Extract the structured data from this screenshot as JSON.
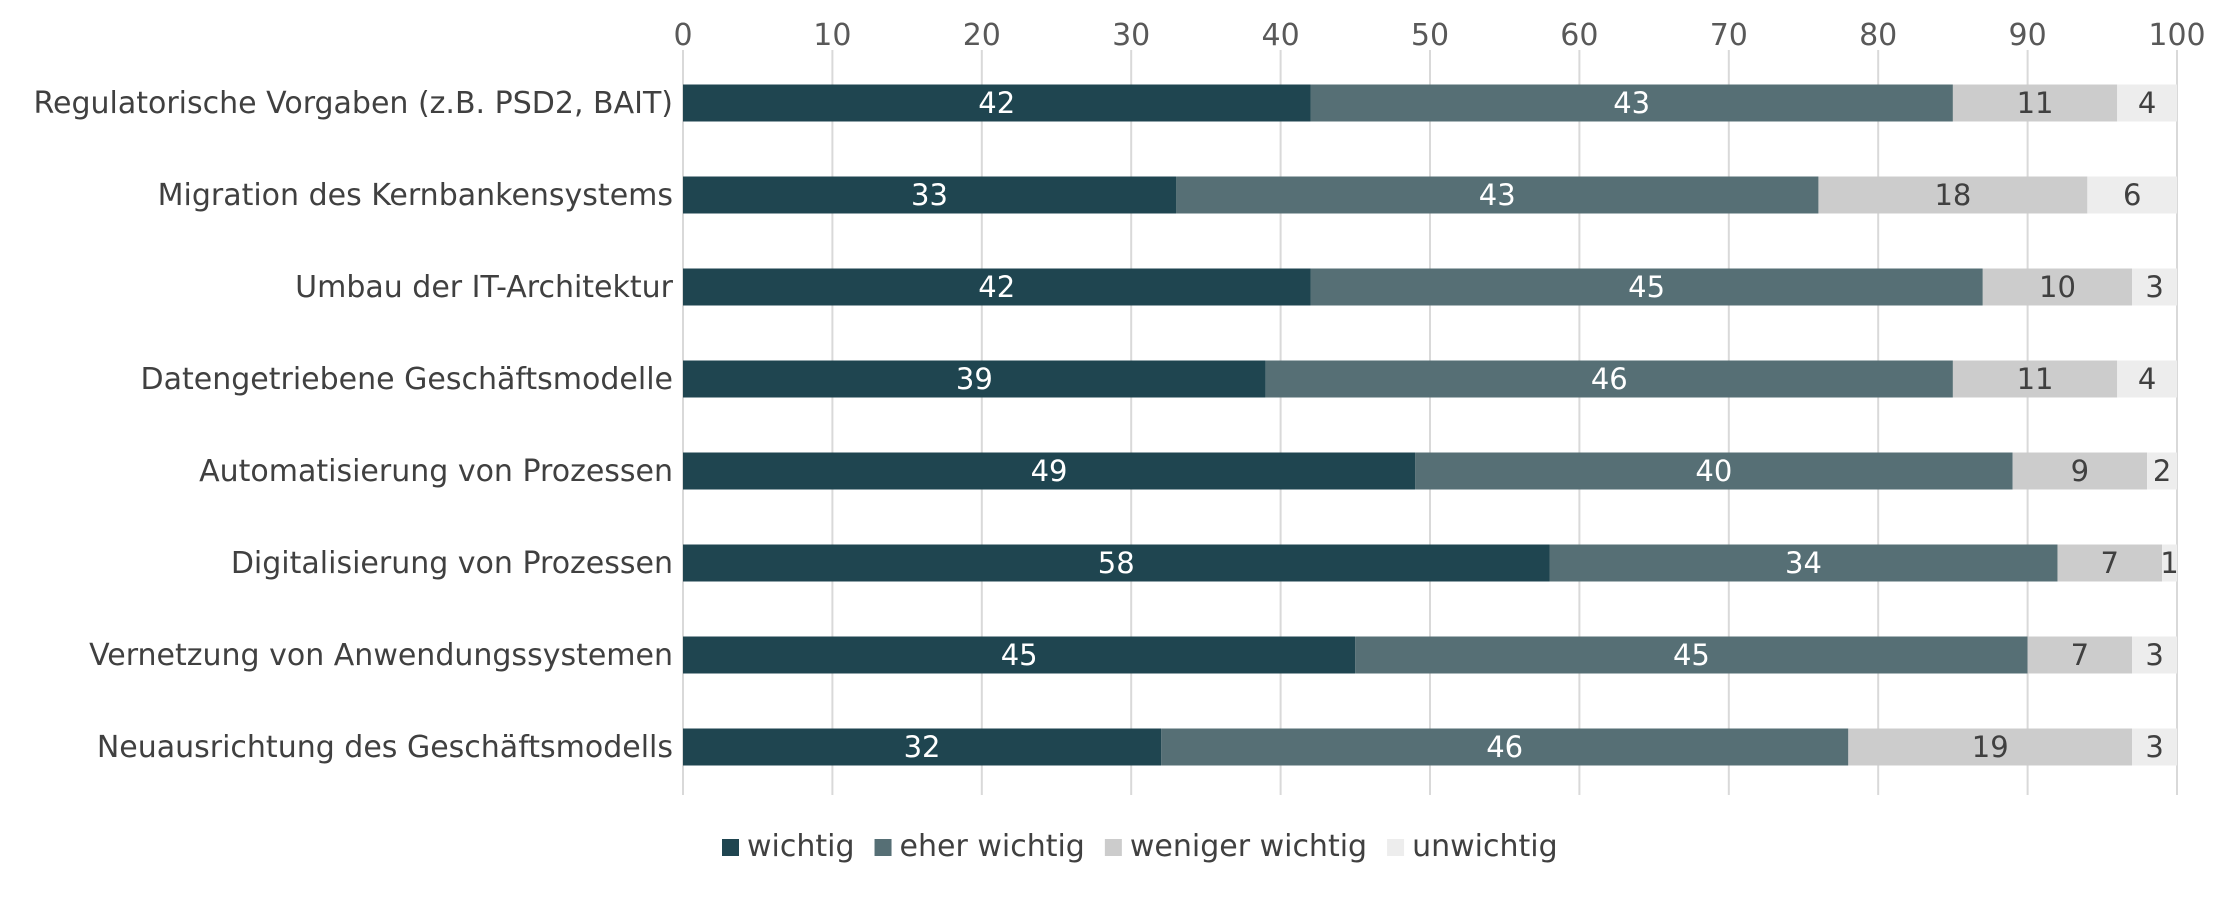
{
  "chart_data": {
    "type": "bar",
    "orientation": "horizontal",
    "stacked": true,
    "title": "",
    "xlabel": "",
    "ylabel": "",
    "xlim": [
      0,
      100
    ],
    "xticks": [
      "0",
      "10",
      "20",
      "30",
      "40",
      "50",
      "60",
      "70",
      "80",
      "90",
      "100"
    ],
    "grid": true,
    "legend_position": "bottom",
    "categories": [
      "Regulatorische Vorgaben (z.B. PSD2, BAIT)",
      "Migration des Kernbankensystems",
      "Umbau der IT-Architektur",
      "Datengetriebene Geschäftsmodelle",
      "Automatisierung von Prozessen",
      "Digitalisierung von Prozessen",
      "Vernetzung von Anwendungssystemen",
      "Neuausrichtung des Geschäftsmodells"
    ],
    "series": [
      {
        "name": "wichtig",
        "color": "#1f4550",
        "label_color": "#ffffff",
        "values": [
          42,
          33,
          42,
          39,
          49,
          58,
          45,
          32
        ]
      },
      {
        "name": "eher wichtig",
        "color": "#566f75",
        "label_color": "#ffffff",
        "values": [
          43,
          43,
          45,
          46,
          40,
          34,
          45,
          46
        ]
      },
      {
        "name": "weniger wichtig",
        "color": "#cccccc",
        "label_color": "#404040",
        "values": [
          11,
          18,
          10,
          11,
          9,
          7,
          7,
          19
        ]
      },
      {
        "name": "unwichtig",
        "color": "#ededed",
        "label_color": "#404040",
        "values": [
          4,
          6,
          3,
          4,
          2,
          1,
          3,
          3
        ]
      }
    ]
  }
}
